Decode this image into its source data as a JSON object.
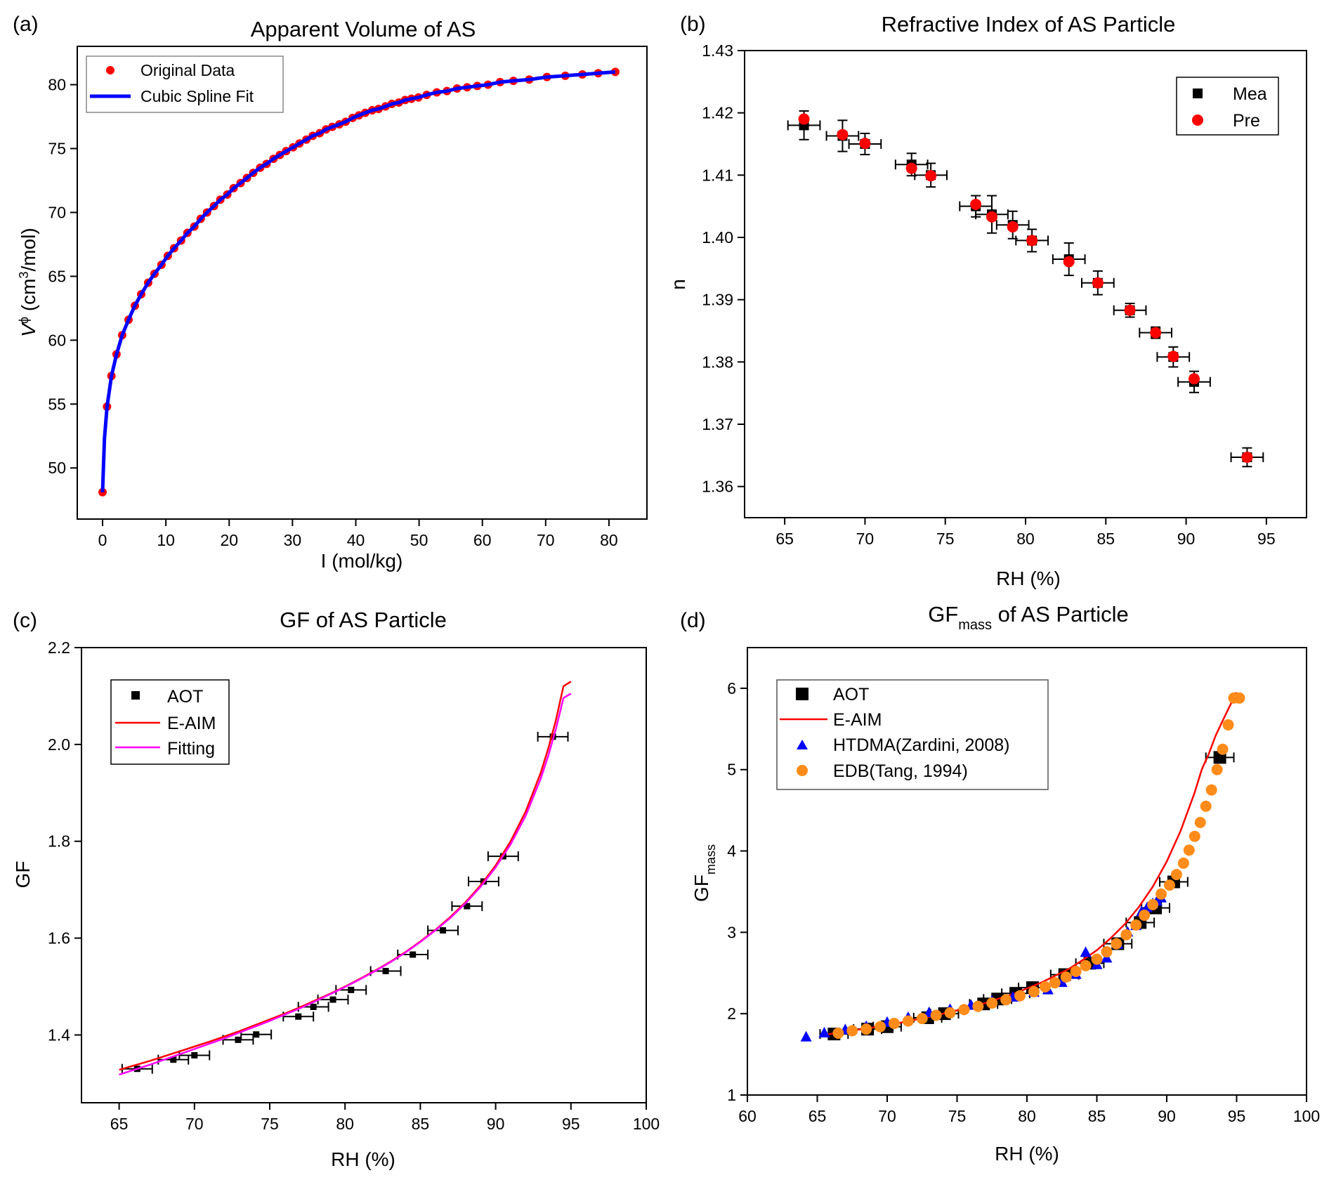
{
  "panels": [
    {
      "panel_label": "(a)",
      "title": "Apparent Volume of AS",
      "xlabel": "I (mol/kg)",
      "ylabel": {
        "base": "V",
        "sup_symbol": "ϕ",
        "unit_pre": " (cm",
        "unit_sup": "3",
        "unit_post": "/mol)"
      },
      "legend": [
        "Original Data",
        "Cubic Spline Fit"
      ]
    },
    {
      "panel_label": "(b)",
      "title": "Refractive Index of AS Particle",
      "xlabel": "RH (%)",
      "ylabel": "n",
      "legend": [
        "Mea",
        "Pre"
      ]
    },
    {
      "panel_label": "(c)",
      "title": "GF of AS Particle",
      "xlabel": "RH (%)",
      "ylabel": "GF",
      "legend": [
        "AOT",
        "E-AIM",
        "Fitting"
      ]
    },
    {
      "panel_label": "(d)",
      "title": {
        "base": "GF",
        "sub": "mass",
        "rest": " of AS Particle"
      },
      "xlabel": "RH (%)",
      "ylabel": {
        "base": "GF",
        "sub": "mass"
      },
      "legend": [
        "AOT",
        "E-AIM",
        "HTDMA(Zardini, 2008)",
        "EDB(Tang, 1994)"
      ]
    }
  ],
  "colors": {
    "red": "#ff0000",
    "blue": "#0000ff",
    "magenta": "#ff00ff",
    "orange": "#ff8c1a",
    "black": "#000000"
  },
  "chart_data": [
    {
      "type": "scatter",
      "title": "Apparent Volume of AS",
      "xlabel": "I (mol/kg)",
      "ylabel": "V^ϕ (cm^3/mol)",
      "xlim": [
        -4,
        86
      ],
      "ylim": [
        46,
        83
      ],
      "xticks": [
        0,
        10,
        20,
        30,
        40,
        50,
        60,
        70,
        80
      ],
      "yticks": [
        50,
        55,
        60,
        65,
        70,
        75,
        80
      ],
      "legend_position": "top-left",
      "series": [
        {
          "name": "Original Data",
          "marker": "circle",
          "color": "#ff0000",
          "x": [
            0,
            0.7,
            1.4,
            2.2,
            3.1,
            4.1,
            5.1,
            6.1,
            7.2,
            8.2,
            9.3,
            10.3,
            11.3,
            12.4,
            13.4,
            14.5,
            15.5,
            16.5,
            17.6,
            18.6,
            19.7,
            20.7,
            21.8,
            22.8,
            23.8,
            24.9,
            25.9,
            27,
            28,
            29,
            30.1,
            31.1,
            32.2,
            33.2,
            34.3,
            35.3,
            36.3,
            37.4,
            38.4,
            39.5,
            40.5,
            41.5,
            42.6,
            43.6,
            44.7,
            45.7,
            46.8,
            47.8,
            48.8,
            49.9,
            51.2,
            52.8,
            54.4,
            56.0,
            57.6,
            59.2,
            60.9,
            62.8,
            64.9,
            67.4,
            70.2,
            73.1,
            75.8,
            78.3,
            81.0
          ],
          "y": [
            48.1,
            54.8,
            57.2,
            58.9,
            60.4,
            61.6,
            62.7,
            63.6,
            64.5,
            65.2,
            65.9,
            66.6,
            67.2,
            67.8,
            68.4,
            68.9,
            69.5,
            70.0,
            70.5,
            71.0,
            71.4,
            71.9,
            72.3,
            72.7,
            73.1,
            73.5,
            73.8,
            74.2,
            74.5,
            74.8,
            75.1,
            75.4,
            75.7,
            76.0,
            76.2,
            76.5,
            76.7,
            76.9,
            77.1,
            77.4,
            77.6,
            77.8,
            78.0,
            78.1,
            78.3,
            78.5,
            78.6,
            78.8,
            78.9,
            79.0,
            79.2,
            79.4,
            79.5,
            79.7,
            79.8,
            79.9,
            80.0,
            80.2,
            80.3,
            80.4,
            80.6,
            80.7,
            80.8,
            80.9,
            81.0
          ]
        },
        {
          "name": "Cubic Spline Fit",
          "marker": "line",
          "color": "#0000ff",
          "x": [
            0,
            0.3,
            0.7,
            1.4,
            2.2,
            3.1,
            4.1,
            5.1,
            6.1,
            7.2,
            8.2,
            9.3,
            10.3,
            11.3,
            12.4,
            13.4,
            14.5,
            15.5,
            16.5,
            17.6,
            18.6,
            19.7,
            20.7,
            21.8,
            22.8,
            23.8,
            24.9,
            25.9,
            27,
            28,
            29,
            30.1,
            31.1,
            32.2,
            33.2,
            34.3,
            35.3,
            36.3,
            37.4,
            38.4,
            39.5,
            40.5,
            41.5,
            42.6,
            43.6,
            44.7,
            45.7,
            46.8,
            47.8,
            48.8,
            49.9,
            51.2,
            52.8,
            54.4,
            56.0,
            57.6,
            59.2,
            60.9,
            62.8,
            64.9,
            67.4,
            70.2,
            73.1,
            75.8,
            78.3,
            81.0
          ],
          "y": [
            48.1,
            52.3,
            54.8,
            57.2,
            58.9,
            60.4,
            61.6,
            62.7,
            63.6,
            64.5,
            65.2,
            65.9,
            66.6,
            67.2,
            67.8,
            68.4,
            68.9,
            69.5,
            70.0,
            70.5,
            71.0,
            71.4,
            71.9,
            72.3,
            72.7,
            73.1,
            73.5,
            73.8,
            74.2,
            74.5,
            74.8,
            75.1,
            75.4,
            75.7,
            76.0,
            76.2,
            76.5,
            76.7,
            76.9,
            77.1,
            77.4,
            77.6,
            77.8,
            78.0,
            78.1,
            78.3,
            78.5,
            78.6,
            78.8,
            78.9,
            79.0,
            79.2,
            79.4,
            79.5,
            79.7,
            79.8,
            79.9,
            80.0,
            80.2,
            80.3,
            80.4,
            80.6,
            80.7,
            80.8,
            80.9,
            81.0
          ]
        }
      ]
    },
    {
      "type": "scatter",
      "title": "Refractive Index of AS Particle",
      "xlabel": "RH (%)",
      "ylabel": "n",
      "xlim": [
        62.5,
        97.5
      ],
      "ylim": [
        1.355,
        1.43
      ],
      "xticks": [
        65,
        70,
        75,
        80,
        85,
        90,
        95
      ],
      "yticks": [
        1.36,
        1.37,
        1.38,
        1.39,
        1.4,
        1.41,
        1.42,
        1.43
      ],
      "legend_position": "top-right",
      "series": [
        {
          "name": "Mea",
          "marker": "square",
          "color": "#000000",
          "x": [
            66.2,
            68.6,
            70.0,
            72.9,
            74.1,
            76.9,
            77.9,
            79.2,
            80.4,
            82.7,
            84.5,
            86.5,
            88.1,
            89.2,
            90.5,
            93.8
          ],
          "y": [
            1.418,
            1.4163,
            1.415,
            1.4117,
            1.41,
            1.405,
            1.4037,
            1.402,
            1.3995,
            1.3965,
            1.3927,
            1.3883,
            1.3847,
            1.3808,
            1.3768,
            1.3647
          ],
          "xerr": [
            1.0,
            1.0,
            1.0,
            1.0,
            1.0,
            1.0,
            1.0,
            1.0,
            1.0,
            1.0,
            1.0,
            1.0,
            1.0,
            1.0,
            1.0,
            1.0
          ],
          "yerr": [
            0.0023,
            0.0025,
            0.0017,
            0.0018,
            0.0019,
            0.0017,
            0.003,
            0.0022,
            0.0018,
            0.0026,
            0.0019,
            0.0011,
            0.0009,
            0.0016,
            0.0017,
            0.0015
          ]
        },
        {
          "name": "Pre",
          "marker": "circle",
          "color": "#ff0000",
          "x": [
            66.2,
            68.6,
            70.0,
            72.9,
            74.1,
            76.9,
            77.9,
            79.2,
            80.4,
            82.7,
            84.5,
            86.5,
            88.1,
            89.2,
            90.5,
            93.8
          ],
          "y": [
            1.419,
            1.4165,
            1.4151,
            1.4111,
            1.4099,
            1.4053,
            1.4033,
            1.4017,
            1.3995,
            1.3961,
            1.3927,
            1.3883,
            1.3847,
            1.3809,
            1.3773,
            1.3647
          ]
        }
      ]
    },
    {
      "type": "scatter",
      "title": "GF of AS Particle",
      "xlabel": "RH (%)",
      "ylabel": "GF",
      "xlim": [
        62.5,
        100
      ],
      "ylim": [
        1.26,
        2.2
      ],
      "xticks": [
        65,
        70,
        75,
        80,
        85,
        90,
        95,
        100
      ],
      "yticks": [
        1.4,
        1.6,
        1.8,
        2.0,
        2.2
      ],
      "legend_position": "top-left",
      "series": [
        {
          "name": "AOT",
          "marker": "square",
          "color": "#000000",
          "x": [
            66.2,
            68.6,
            70.0,
            72.9,
            74.1,
            76.9,
            77.9,
            79.2,
            80.4,
            82.7,
            84.5,
            86.5,
            88.1,
            89.2,
            90.5,
            93.8
          ],
          "y": [
            1.33,
            1.349,
            1.358,
            1.39,
            1.401,
            1.438,
            1.458,
            1.473,
            1.493,
            1.532,
            1.566,
            1.616,
            1.666,
            1.717,
            1.769,
            2.016
          ],
          "xerr": [
            1.0,
            1.0,
            1.0,
            1.0,
            1.0,
            1.0,
            1.0,
            1.0,
            1.0,
            1.0,
            1.0,
            1.0,
            1.0,
            1.0,
            1.0,
            1.0
          ]
        },
        {
          "name": "E-AIM",
          "marker": "line",
          "color": "#ff0000",
          "x": [
            65,
            66,
            67,
            68,
            69,
            70,
            71,
            72,
            73,
            74,
            75,
            76,
            77,
            78,
            79,
            80,
            81,
            82,
            83,
            84,
            85,
            86,
            87,
            88,
            89,
            90,
            91,
            92,
            93,
            93.5,
            94,
            94.5,
            95
          ],
          "y": [
            1.328,
            1.337,
            1.346,
            1.356,
            1.366,
            1.376,
            1.386,
            1.397,
            1.408,
            1.42,
            1.432,
            1.444,
            1.457,
            1.471,
            1.485,
            1.5,
            1.516,
            1.533,
            1.551,
            1.571,
            1.593,
            1.617,
            1.644,
            1.674,
            1.709,
            1.75,
            1.8,
            1.862,
            1.942,
            1.992,
            2.05,
            2.12,
            2.13
          ]
        },
        {
          "name": "Fitting",
          "marker": "line",
          "color": "#ff00ff",
          "x": [
            65,
            66,
            67,
            68,
            69,
            70,
            71,
            72,
            73,
            74,
            75,
            76,
            77,
            78,
            79,
            80,
            81,
            82,
            83,
            84,
            85,
            86,
            87,
            88,
            89,
            90,
            91,
            92,
            93,
            93.5,
            94,
            94.5,
            95
          ],
          "y": [
            1.318,
            1.328,
            1.338,
            1.349,
            1.36,
            1.371,
            1.382,
            1.393,
            1.405,
            1.417,
            1.429,
            1.442,
            1.455,
            1.469,
            1.484,
            1.499,
            1.515,
            1.532,
            1.55,
            1.57,
            1.592,
            1.616,
            1.642,
            1.672,
            1.706,
            1.746,
            1.794,
            1.853,
            1.93,
            1.977,
            2.032,
            2.096,
            2.105
          ]
        }
      ]
    },
    {
      "type": "scatter",
      "title": "GFmass of AS Particle",
      "xlabel": "RH (%)",
      "ylabel": "GFmass",
      "xlim": [
        60,
        100
      ],
      "ylim": [
        1,
        6.5
      ],
      "xticks": [
        60,
        65,
        70,
        75,
        80,
        85,
        90,
        95,
        100
      ],
      "yticks": [
        1,
        2,
        3,
        4,
        5,
        6
      ],
      "legend_position": "top-left",
      "series": [
        {
          "name": "AOT",
          "marker": "square",
          "color": "#000000",
          "x": [
            66.2,
            68.6,
            70.0,
            72.9,
            74.1,
            76.9,
            77.9,
            79.2,
            80.4,
            82.7,
            84.5,
            86.5,
            88.1,
            89.2,
            90.5,
            93.8
          ],
          "y": [
            1.75,
            1.81,
            1.84,
            1.95,
            2.0,
            2.12,
            2.18,
            2.25,
            2.32,
            2.48,
            2.62,
            2.86,
            3.12,
            3.3,
            3.62,
            5.15
          ],
          "xerr": [
            1.0,
            1.0,
            1.0,
            1.0,
            1.0,
            1.0,
            1.0,
            1.0,
            1.0,
            1.0,
            1.0,
            1.0,
            1.0,
            1.0,
            1.0,
            1.0
          ]
        },
        {
          "name": "E-AIM",
          "marker": "line",
          "color": "#ff0000",
          "x": [
            65.5,
            67,
            69,
            71,
            73,
            75,
            77,
            79,
            81,
            83,
            84,
            85,
            86,
            87,
            88,
            89,
            90,
            91,
            92,
            92.5,
            93,
            93.5,
            94,
            94.5,
            95
          ],
          "y": [
            1.74,
            1.78,
            1.83,
            1.89,
            1.96,
            2.04,
            2.13,
            2.24,
            2.38,
            2.55,
            2.66,
            2.78,
            2.93,
            3.1,
            3.31,
            3.56,
            3.87,
            4.25,
            4.72,
            5.0,
            5.19,
            5.42,
            5.6,
            5.78,
            5.95
          ]
        },
        {
          "name": "HTDMA(Zardini, 2008)",
          "marker": "triangle",
          "color": "#0000ff",
          "x": [
            64.2,
            65.5,
            67.0,
            68.5,
            70.0,
            71.5,
            73.0,
            74.5,
            76.0,
            77.5,
            79.0,
            80.5,
            81.5,
            82.5,
            83.5,
            84.2,
            85.0,
            85.7,
            86.5,
            87.2,
            87.8,
            88.2,
            88.6,
            89.0,
            89.3,
            89.6
          ],
          "y": [
            1.71,
            1.76,
            1.8,
            1.84,
            1.89,
            1.95,
            2.01,
            2.05,
            2.1,
            2.15,
            2.2,
            2.26,
            2.29,
            2.38,
            2.48,
            2.75,
            2.6,
            2.68,
            2.85,
            3.0,
            3.08,
            3.25,
            3.3,
            3.35,
            3.38,
            3.42
          ]
        },
        {
          "name": "EDB(Tang, 1994)",
          "marker": "circle",
          "color": "#ff8c1a",
          "x": [
            66.5,
            67.5,
            68.5,
            69.5,
            70.5,
            71.5,
            72.5,
            73.5,
            74.5,
            75.5,
            76.5,
            77.5,
            78.5,
            79.5,
            80.5,
            81.3,
            82.0,
            82.8,
            83.5,
            84.2,
            85.0,
            85.7,
            86.4,
            87.1,
            87.8,
            88.4,
            89.0,
            89.6,
            90.2,
            90.7,
            91.2,
            91.6,
            92.0,
            92.4,
            92.8,
            93.2,
            93.6,
            94.0,
            94.4,
            94.8,
            95.2
          ],
          "y": [
            1.76,
            1.79,
            1.81,
            1.84,
            1.88,
            1.91,
            1.94,
            1.98,
            2.01,
            2.05,
            2.09,
            2.13,
            2.17,
            2.22,
            2.27,
            2.33,
            2.38,
            2.45,
            2.52,
            2.59,
            2.67,
            2.76,
            2.86,
            2.97,
            3.09,
            3.21,
            3.34,
            3.47,
            3.58,
            3.71,
            3.85,
            4.01,
            4.18,
            4.35,
            4.55,
            4.75,
            5.0,
            5.25,
            5.55,
            5.88,
            5.88
          ]
        }
      ]
    }
  ]
}
